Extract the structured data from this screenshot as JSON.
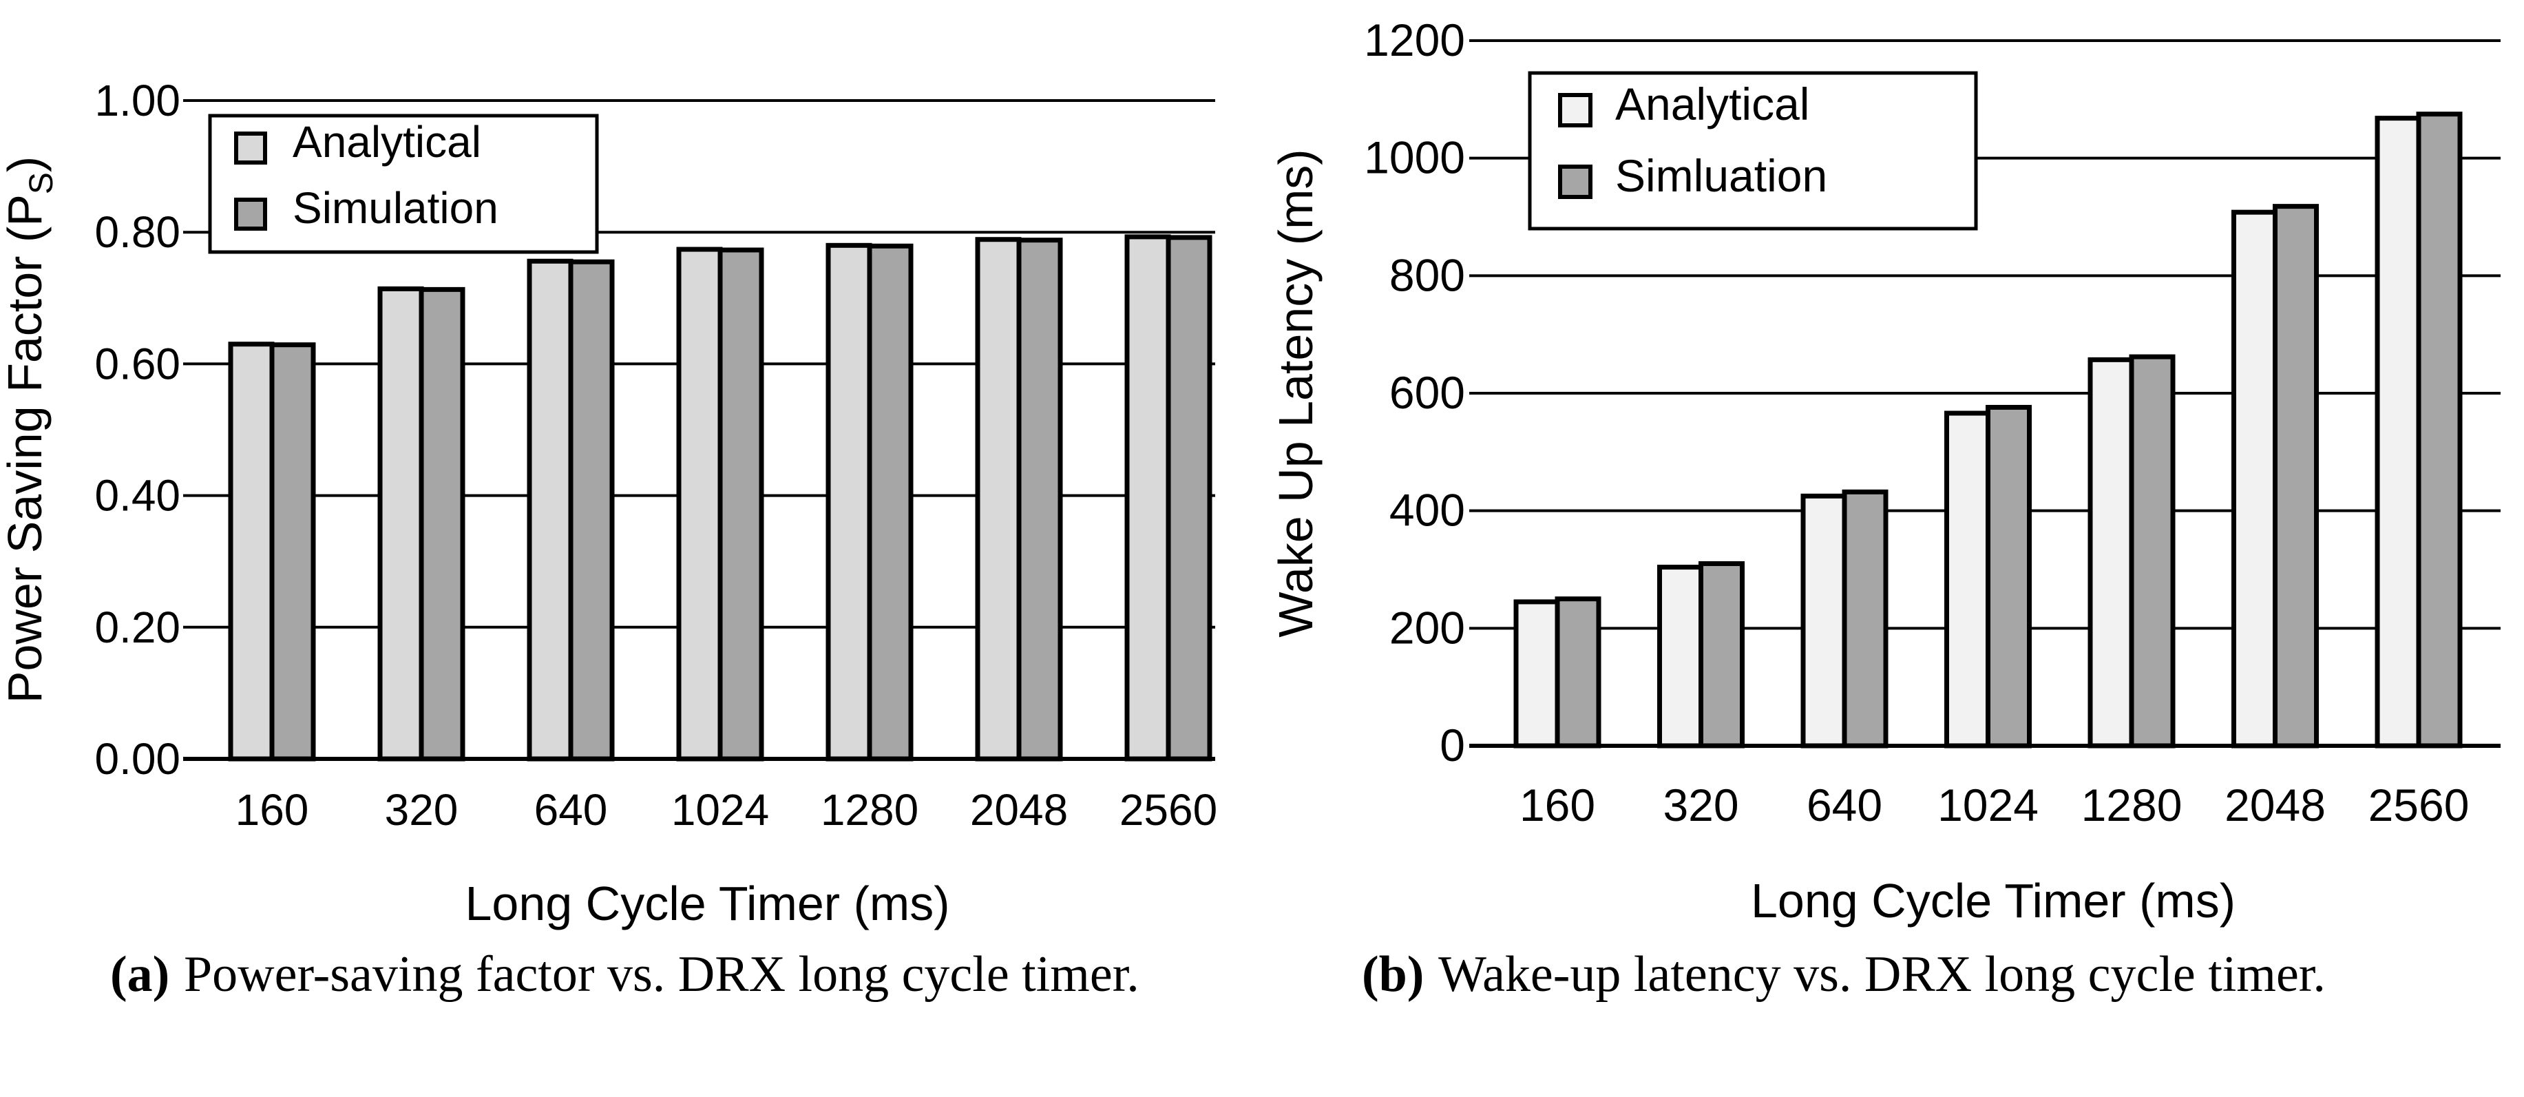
{
  "captions": {
    "a": {
      "marker": "(a)",
      "text": "Power-saving factor vs. DRX long cycle timer."
    },
    "b": {
      "marker": "(b)",
      "text": "Wake-up latency vs. DRX long cycle timer."
    }
  },
  "chart_data": [
    {
      "id": "a",
      "type": "bar",
      "title": "",
      "xlabel": "Long Cycle Timer (ms)",
      "ylabel": "Power Saving Factor (Ps)",
      "ylabel_parts": {
        "pre": "Power Saving Factor (P",
        "sub": "S",
        "post": ")"
      },
      "categories": [
        "160",
        "320",
        "640",
        "1024",
        "1280",
        "2048",
        "2560"
      ],
      "series": [
        {
          "name": "Analytical",
          "color": "#d9d9d9",
          "values": [
            0.63,
            0.714,
            0.756,
            0.774,
            0.78,
            0.789,
            0.793
          ]
        },
        {
          "name": "Simulation",
          "color": "#a6a6a6",
          "values": [
            0.629,
            0.713,
            0.755,
            0.773,
            0.779,
            0.788,
            0.792
          ]
        }
      ],
      "ylim": [
        0,
        1.0
      ],
      "yticks": [
        "0.00",
        "0.20",
        "0.40",
        "0.60",
        "0.80",
        "1.00"
      ],
      "grid": true,
      "gridline_color": "#000000",
      "bar_outline_color": "#000000",
      "legend_position": "top-left"
    },
    {
      "id": "b",
      "type": "bar",
      "title": "",
      "xlabel": "Long Cycle Timer (ms)",
      "ylabel": "Wake Up Latency (ms)",
      "categories": [
        "160",
        "320",
        "640",
        "1024",
        "1280",
        "2048",
        "2560"
      ],
      "series": [
        {
          "name": "Analytical",
          "color": "#f2f2f2",
          "values": [
            245,
            304,
            425,
            566,
            657,
            908,
            1068
          ]
        },
        {
          "name": "Simluation",
          "color": "#a6a6a6",
          "values": [
            250,
            310,
            432,
            576,
            662,
            918,
            1075
          ]
        }
      ],
      "ylim": [
        0,
        1200
      ],
      "yticks": [
        "0",
        "200",
        "400",
        "600",
        "800",
        "1000",
        "1200"
      ],
      "grid": true,
      "gridline_color": "#000000",
      "bar_outline_color": "#000000",
      "legend_position": "top-left"
    }
  ]
}
